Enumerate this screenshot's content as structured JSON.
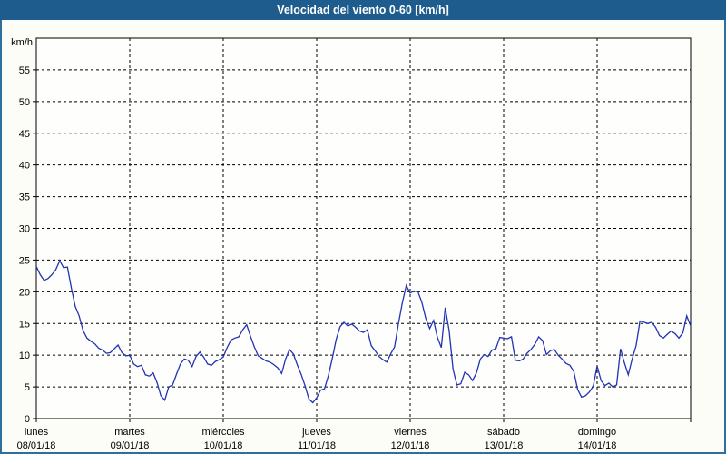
{
  "window": {
    "title": "Velocidad del viento 0-60 [km/h]"
  },
  "colors": {
    "title_bar_bg": "#1d5c8c",
    "title_text": "#ffffff",
    "frame_border": "#2e6f9e",
    "page_bg": "#fcfdf7",
    "plot_bg": "#fefefc",
    "grid": "#000000",
    "axis": "#000000",
    "line": "#2233b3"
  },
  "chart_data": {
    "type": "line",
    "title": "Velocidad del viento 0-60 [km/h]",
    "ylabel": "km/h",
    "xlabel": "",
    "ylim": [
      0,
      60
    ],
    "y_ticks": [
      0,
      5,
      10,
      15,
      20,
      25,
      30,
      35,
      40,
      45,
      50,
      55
    ],
    "grid": "dashed-black-on-white",
    "legend": "none",
    "sampling": "hourly, 7 days (Mon 08/01/18 00:00 - Sun 14/01/18 24:00)",
    "x_axis_days": [
      {
        "name": "lunes",
        "date": "08/01/18"
      },
      {
        "name": "martes",
        "date": "09/01/18"
      },
      {
        "name": "miércoles",
        "date": "10/01/18"
      },
      {
        "name": "jueves",
        "date": "11/01/18"
      },
      {
        "name": "viernes",
        "date": "12/01/18"
      },
      {
        "name": "sábado",
        "date": "13/01/18"
      },
      {
        "name": "domingo",
        "date": "14/01/18"
      }
    ],
    "series": [
      {
        "name": "Velocidad del viento [km/h]",
        "color": "#2233b3",
        "values": [
          24.0,
          22.7,
          21.8,
          22.1,
          22.7,
          23.5,
          24.9,
          23.8,
          23.9,
          20.6,
          17.7,
          16.2,
          13.9,
          12.7,
          12.2,
          11.8,
          11.1,
          10.8,
          10.3,
          10.4,
          11.0,
          11.6,
          10.4,
          9.9,
          10.0,
          8.6,
          8.2,
          8.4,
          6.9,
          6.7,
          7.2,
          5.7,
          3.6,
          2.9,
          5.0,
          5.3,
          7.0,
          8.6,
          9.4,
          9.2,
          8.2,
          9.8,
          10.5,
          9.7,
          8.6,
          8.4,
          9.0,
          9.3,
          9.7,
          11.2,
          12.4,
          12.7,
          12.9,
          14.0,
          14.8,
          13.0,
          11.3,
          9.9,
          9.5,
          9.1,
          8.9,
          8.5,
          8.0,
          7.1,
          9.4,
          10.9,
          10.2,
          8.5,
          7.0,
          5.2,
          3.1,
          2.5,
          3.3,
          4.5,
          4.7,
          6.8,
          9.5,
          12.5,
          14.5,
          15.2,
          14.6,
          14.9,
          14.4,
          13.8,
          13.6,
          14.0,
          11.5,
          10.7,
          9.8,
          9.3,
          8.9,
          10.2,
          11.3,
          15.0,
          18.3,
          21.0,
          19.8,
          20.1,
          20.0,
          18.3,
          15.8,
          14.2,
          15.5,
          12.8,
          11.2,
          17.5,
          13.9,
          7.8,
          5.3,
          5.5,
          7.3,
          6.9,
          6.0,
          7.2,
          9.4,
          10.1,
          9.8,
          10.8,
          11.0,
          12.8,
          12.7,
          12.6,
          12.9,
          9.2,
          9.1,
          9.4,
          10.3,
          10.9,
          11.7,
          12.9,
          12.3,
          10.1,
          10.7,
          10.9,
          10.0,
          9.4,
          8.7,
          8.4,
          7.4,
          4.6,
          3.4,
          3.6,
          4.2,
          5.1,
          8.3,
          6.0,
          5.2,
          5.6,
          5.0,
          5.3,
          11.0,
          8.8,
          6.9,
          9.4,
          11.5,
          15.4,
          15.2,
          15.0,
          15.2,
          14.4,
          13.1,
          12.7,
          13.3,
          13.8,
          13.4,
          12.7,
          13.5,
          16.2,
          14.6
        ]
      }
    ]
  }
}
